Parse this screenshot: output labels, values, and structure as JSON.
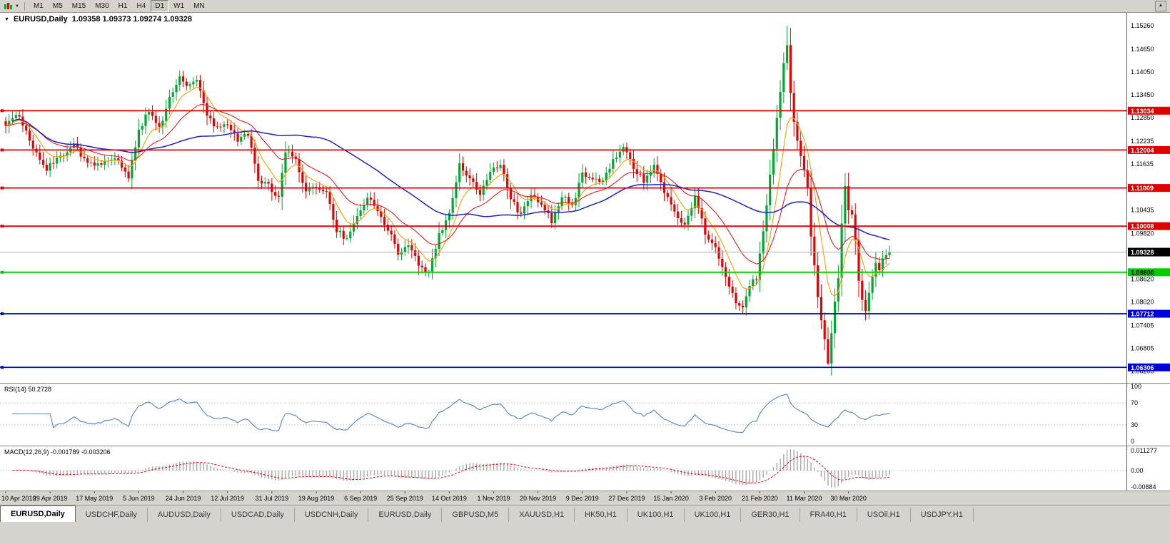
{
  "toolbar": {
    "timeframes": [
      "M1",
      "M5",
      "M15",
      "M30",
      "H1",
      "H4",
      "D1",
      "W1",
      "MN"
    ],
    "active": "D1"
  },
  "title": {
    "symbol": "EURUSD,Daily",
    "ohlc": "1.09358 1.09373 1.09274 1.09328"
  },
  "indicators": {
    "rsi_label": "RSI(14) 50.2728",
    "macd_label": "MACD(12,26,9) -0.001789 -0.003206"
  },
  "price_axis": {
    "ticks": [
      "1.15260",
      "1.14650",
      "1.14050",
      "1.13450",
      "1.12850",
      "1.12235",
      "1.11635",
      "1.10435",
      "1.09820",
      "1.08620",
      "1.08020",
      "1.07405",
      "1.06805",
      "1.06205"
    ]
  },
  "rsi_axis": [
    "100",
    "70",
    "30",
    "0"
  ],
  "macd_axis": {
    "top": "0.011277",
    "zero": "0.00",
    "bottom": "-0.00884"
  },
  "levels": [
    {
      "price": 1.13034,
      "label": "1.13034",
      "color": "#e00000",
      "text_color": "#ffffff",
      "name": "resistance-1"
    },
    {
      "price": 1.12004,
      "label": "1.12004",
      "color": "#e00000",
      "text_color": "#ffffff",
      "name": "resistance-2"
    },
    {
      "price": 1.11009,
      "label": "1.11009",
      "color": "#e00000",
      "text_color": "#ffffff",
      "name": "resistance-3"
    },
    {
      "price": 1.10008,
      "label": "1.10008",
      "color": "#e00000",
      "text_color": "#ffffff",
      "name": "resistance-4"
    },
    {
      "price": 1.088,
      "label": "1.08800",
      "color": "#00cc00",
      "text_color": "#000000",
      "name": "support-green"
    },
    {
      "price": 1.07712,
      "label": "1.07712",
      "color": "#0000d8",
      "text_color": "#ffffff",
      "name": "support-blue-1"
    },
    {
      "price": 1.06306,
      "label": "1.06306",
      "color": "#0000d8",
      "text_color": "#ffffff",
      "name": "support-blue-2"
    }
  ],
  "current_price": {
    "value": 1.09328,
    "label": "1.09328"
  },
  "dates": [
    "10 Apr 2019",
    "29 Apr 2019",
    "17 May 2019",
    "5 Jun 2019",
    "24 Jun 2019",
    "12 Jul 2019",
    "31 Jul 2019",
    "19 Aug 2019",
    "6 Sep 2019",
    "25 Sep 2019",
    "14 Oct 2019",
    "1 Nov 2019",
    "20 Nov 2019",
    "9 Dec 2019",
    "27 Dec 2019",
    "15 Jan 2020",
    "3 Feb 2020",
    "21 Feb 2020",
    "11 Mar 2020",
    "30 Mar 2020"
  ],
  "tabs": [
    "EURUSD,Daily",
    "USDCHF,Daily",
    "AUDUSD,Daily",
    "USDCAD,Daily",
    "USDCNH,Daily",
    "EURUSD,Daily",
    "GBPUSD,M5",
    "XAUUSD,H1",
    "HK50,H1",
    "UK100,H1",
    "UK100,H1",
    "GER30,H1",
    "FRA40,H1",
    "USOil,H1",
    "USDJPY,H1"
  ],
  "active_tab": 0,
  "colors": {
    "candle_up": "#00a832",
    "candle_down": "#e80000",
    "ma_fast": "#ff9c00",
    "ma_medium": "#e02020",
    "ma_slow": "#2020c0",
    "rsi": "#4f86c6",
    "macd_hist": "#a8a8a8",
    "macd_signal": "#e00000",
    "current_price_line": "#b0b0b0",
    "current_price_box": "#000000",
    "rsi_level_line": "#c8c8c8"
  },
  "chart_data": {
    "type": "candlestick",
    "symbol": "EURUSD",
    "timeframe": "Daily",
    "ohlc_display": {
      "open": "1.09358",
      "high": "1.09373",
      "low": "1.09274",
      "close": "1.09328"
    },
    "y_min": 1.059,
    "y_max": 1.156,
    "num_candles": 260,
    "last_close": 1.09328,
    "anchors": [
      [
        0,
        1.127
      ],
      [
        4,
        1.129
      ],
      [
        8,
        1.1205
      ],
      [
        12,
        1.115
      ],
      [
        16,
        1.1185
      ],
      [
        20,
        1.1215
      ],
      [
        24,
        1.1165
      ],
      [
        28,
        1.116
      ],
      [
        32,
        1.1185
      ],
      [
        36,
        1.113
      ],
      [
        39,
        1.125
      ],
      [
        42,
        1.1305
      ],
      [
        45,
        1.1255
      ],
      [
        48,
        1.134
      ],
      [
        51,
        1.1395
      ],
      [
        53,
        1.137
      ],
      [
        56,
        1.139
      ],
      [
        59,
        1.129
      ],
      [
        62,
        1.1255
      ],
      [
        65,
        1.127
      ],
      [
        68,
        1.1225
      ],
      [
        71,
        1.1245
      ],
      [
        74,
        1.112
      ],
      [
        77,
        1.1105
      ],
      [
        80,
        1.1075
      ],
      [
        82,
        1.12
      ],
      [
        85,
        1.117
      ],
      [
        88,
        1.1095
      ],
      [
        91,
        1.11
      ],
      [
        94,
        1.1085
      ],
      [
        97,
        1.099
      ],
      [
        100,
        1.0965
      ],
      [
        103,
        1.103
      ],
      [
        106,
        1.1075
      ],
      [
        109,
        1.104
      ],
      [
        112,
        1.0995
      ],
      [
        115,
        1.093
      ],
      [
        118,
        1.0955
      ],
      [
        121,
        1.09
      ],
      [
        124,
        1.088
      ],
      [
        127,
        1.0975
      ],
      [
        130,
        1.104
      ],
      [
        133,
        1.116
      ],
      [
        136,
        1.113
      ],
      [
        139,
        1.1085
      ],
      [
        142,
        1.115
      ],
      [
        145,
        1.1165
      ],
      [
        148,
        1.107
      ],
      [
        151,
        1.103
      ],
      [
        154,
        1.108
      ],
      [
        157,
        1.106
      ],
      [
        160,
        1.1015
      ],
      [
        163,
        1.108
      ],
      [
        166,
        1.1055
      ],
      [
        169,
        1.1135
      ],
      [
        172,
        1.112
      ],
      [
        175,
        1.1115
      ],
      [
        178,
        1.1175
      ],
      [
        181,
        1.121
      ],
      [
        184,
        1.1155
      ],
      [
        187,
        1.112
      ],
      [
        190,
        1.1155
      ],
      [
        193,
        1.1095
      ],
      [
        196,
        1.1035
      ],
      [
        199,
        1.1005
      ],
      [
        202,
        1.1075
      ],
      [
        205,
        1.0985
      ],
      [
        208,
        1.0945
      ],
      [
        211,
        1.087
      ],
      [
        214,
        1.08
      ],
      [
        216,
        1.079
      ],
      [
        218,
        1.085
      ],
      [
        220,
        1.0865
      ],
      [
        222,
        1.0985
      ],
      [
        224,
        1.1135
      ],
      [
        226,
        1.1285
      ],
      [
        228,
        1.1435
      ],
      [
        229,
        1.147
      ],
      [
        230,
        1.1355
      ],
      [
        231,
        1.128
      ],
      [
        233,
        1.118
      ],
      [
        235,
        1.1105
      ],
      [
        236,
        1.098
      ],
      [
        238,
        1.082
      ],
      [
        240,
        1.07
      ],
      [
        241,
        1.0645
      ],
      [
        242,
        1.072
      ],
      [
        243,
        1.08
      ],
      [
        244,
        1.0865
      ],
      [
        245,
        1.101
      ],
      [
        246,
        1.1105
      ],
      [
        247,
        1.104
      ],
      [
        248,
        1.103
      ],
      [
        249,
        1.096
      ],
      [
        250,
        1.086
      ],
      [
        251,
        1.08
      ],
      [
        252,
        1.0785
      ],
      [
        253,
        1.083
      ],
      [
        254,
        1.087
      ],
      [
        255,
        1.0905
      ],
      [
        256,
        1.088
      ],
      [
        257,
        1.0915
      ],
      [
        258,
        1.093
      ],
      [
        259,
        1.09328
      ]
    ],
    "wicks": [
      {
        "i": 229,
        "high": 1.1526
      },
      {
        "i": 241,
        "low": 1.0636
      }
    ],
    "moving_averages": [
      {
        "name": "fast",
        "period": 8,
        "type": "ema",
        "color": "#ff9c00"
      },
      {
        "name": "medium",
        "period": 21,
        "type": "ema",
        "color": "#e02020"
      },
      {
        "name": "slow",
        "period": 55,
        "type": "sma",
        "color": "#2020c0"
      }
    ],
    "rsi": {
      "period": 14,
      "current": 50.2728,
      "levels": [
        70,
        30
      ]
    },
    "macd": {
      "fast": 12,
      "slow": 26,
      "signal": 9,
      "current": -0.001789,
      "signal_current": -0.003206
    },
    "hlines": [
      1.13034,
      1.12004,
      1.11009,
      1.10008,
      1.088,
      1.07712,
      1.06306
    ]
  }
}
